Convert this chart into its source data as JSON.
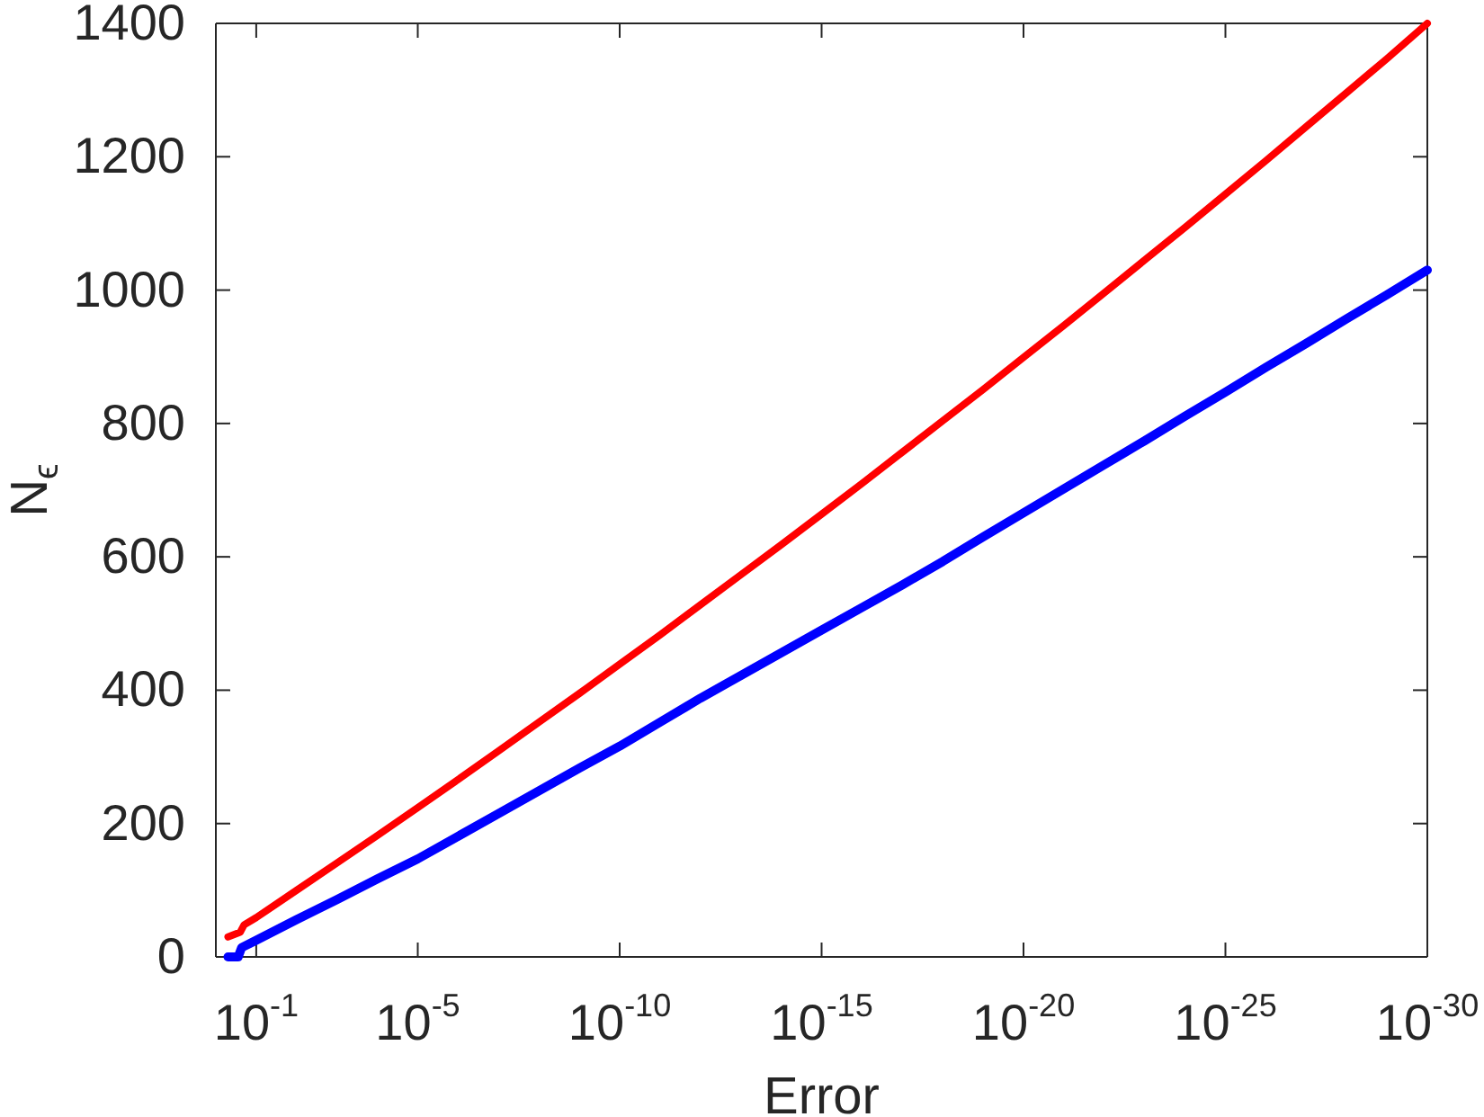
{
  "chart_data": {
    "type": "line",
    "xlabel": "Error",
    "ylabel": "N$_{ϵ}$",
    "log": "x",
    "xlim": [
      1,
      1e-30
    ],
    "xticks": [
      {
        "value": 0.1,
        "label": "10$^{-1}$"
      },
      {
        "value": 1e-05,
        "label": "10$^{-5}$"
      },
      {
        "value": 1e-10,
        "label": "10$^{-10}$"
      },
      {
        "value": 1e-15,
        "label": "10$^{-15}$"
      },
      {
        "value": 1e-20,
        "label": "10$^{-20}$"
      },
      {
        "value": 1e-25,
        "label": "10$^{-25}$"
      },
      {
        "value": 1e-30,
        "label": "10$^{-30}$"
      }
    ],
    "ylim": [
      0,
      1400
    ],
    "yticks": [
      0,
      200,
      400,
      600,
      800,
      1000,
      1200,
      1400
    ],
    "series": [
      {
        "color": "#ff0000",
        "x": [
          0.5,
          0.25,
          0.2,
          0.1,
          0.01,
          0.001,
          0.0001,
          1e-05,
          1e-06,
          1e-07,
          1e-08,
          1e-09,
          1e-10,
          1e-11,
          1e-12,
          1e-13,
          1e-14,
          1e-15,
          1e-16,
          1e-17,
          1e-18,
          1e-19,
          1e-20,
          1e-21,
          1e-22,
          1e-23,
          1e-24,
          1e-25,
          1e-26,
          1e-27,
          1e-28,
          1e-29,
          1e-30
        ],
        "values": [
          30,
          37,
          48,
          59,
          100,
          141,
          182,
          224,
          266,
          309,
          352,
          395,
          439,
          483,
          528,
          573,
          618,
          664,
          710,
          757,
          804,
          851,
          899,
          947,
          996,
          1045,
          1094,
          1144,
          1194,
          1245,
          1296,
          1347,
          1400
        ]
      },
      {
        "color": "#0000ff",
        "x": [
          0.5,
          0.28,
          0.23,
          0.1,
          0.01,
          0.001,
          0.0001,
          1e-05,
          1e-06,
          1e-07,
          1e-08,
          1e-09,
          1e-10,
          1e-11,
          1e-12,
          1e-13,
          1e-14,
          1e-15,
          1e-16,
          1e-17,
          1e-18,
          1e-19,
          1e-20,
          1e-21,
          1e-22,
          1e-23,
          1e-24,
          1e-25,
          1e-26,
          1e-27,
          1e-28,
          1e-29,
          1e-30
        ],
        "values": [
          0,
          0,
          14,
          25,
          56,
          86,
          117,
          147,
          181,
          215,
          249,
          283,
          316,
          352,
          388,
          422,
          456,
          490,
          524,
          558,
          593,
          630,
          666,
          702,
          738,
          774,
          811,
          847,
          884,
          920,
          957,
          993,
          1030
        ]
      }
    ]
  }
}
